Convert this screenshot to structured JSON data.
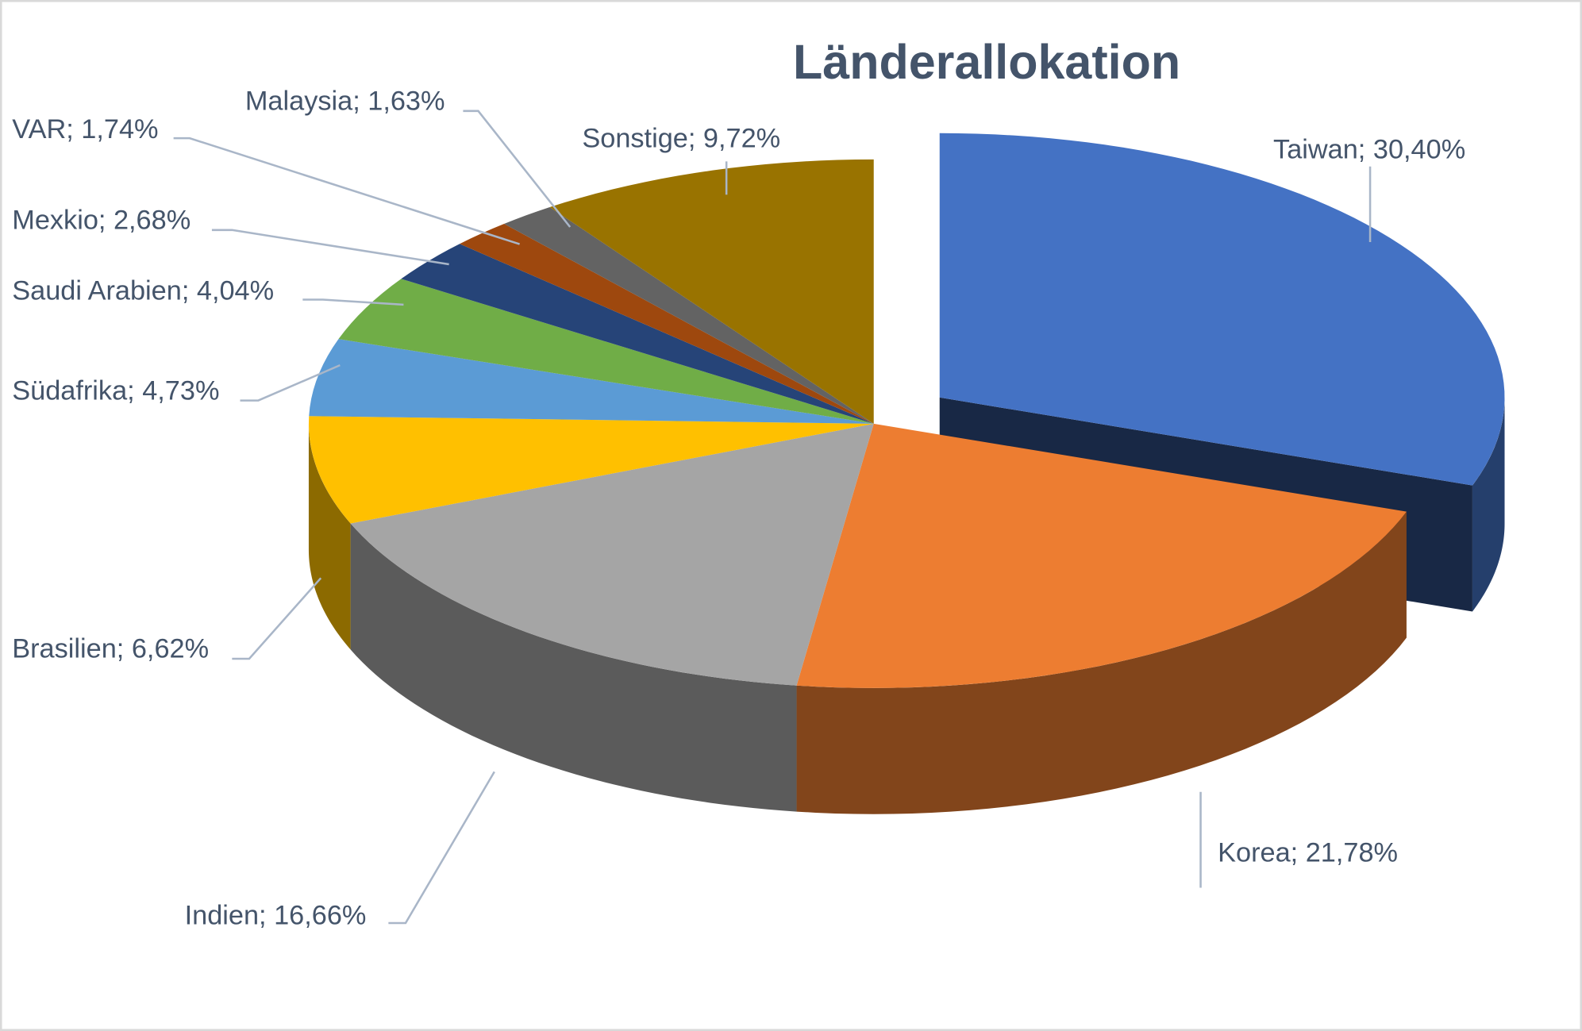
{
  "chart_data": {
    "type": "pie",
    "style": "3d-exploded",
    "title": "Länderallokation",
    "legend": "none",
    "slices": [
      {
        "name": "Taiwan",
        "value": 30.4,
        "label": "Taiwan; 30,40%",
        "color": "#4472C4",
        "exploded": true
      },
      {
        "name": "Korea",
        "value": 21.78,
        "label": "Korea; 21,78%",
        "color": "#ED7D31"
      },
      {
        "name": "Indien",
        "value": 16.66,
        "label": "Indien; 16,66%",
        "color": "#A5A5A5"
      },
      {
        "name": "Brasilien",
        "value": 6.62,
        "label": "Brasilien; 6,62%",
        "color": "#FFC000"
      },
      {
        "name": "Südafrika",
        "value": 4.73,
        "label": "Südafrika; 4,73%",
        "color": "#5B9BD5"
      },
      {
        "name": "Saudi Arabien",
        "value": 4.04,
        "label": "Saudi Arabien; 4,04%",
        "color": "#70AD47"
      },
      {
        "name": "Mexkio",
        "value": 2.68,
        "label": "Mexkio; 2,68%",
        "color": "#264478"
      },
      {
        "name": "VAR",
        "value": 1.74,
        "label": "VAR; 1,74%",
        "color": "#9E480E"
      },
      {
        "name": "Malaysia",
        "value": 1.63,
        "label": "Malaysia; 1,63%",
        "color": "#636363"
      },
      {
        "name": "Sonstige",
        "value": 9.72,
        "label": "Sonstige; 9,72%",
        "color": "#997300"
      }
    ]
  }
}
